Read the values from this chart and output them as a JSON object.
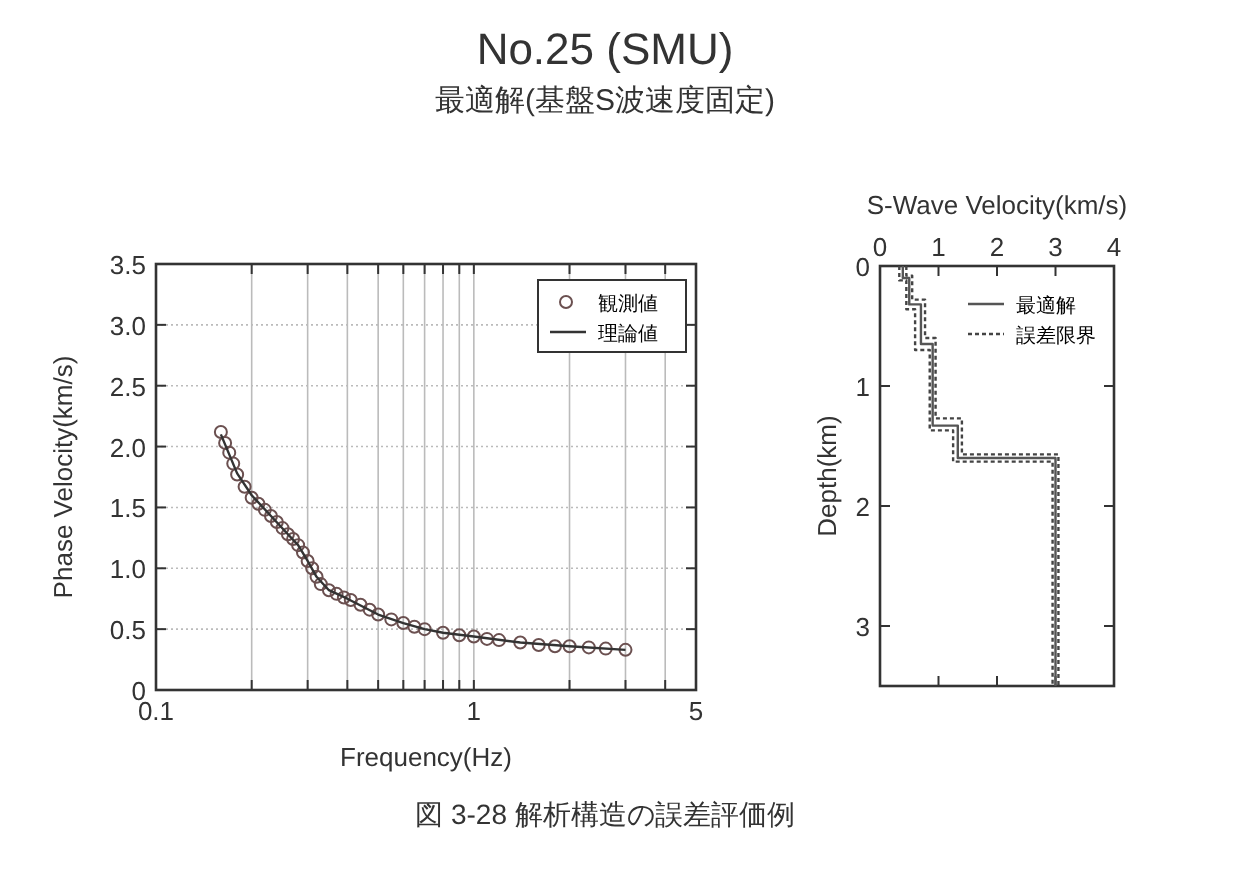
{
  "chart_data": [
    {
      "type": "scatter",
      "title": "No.25 (SMU)",
      "subtitle": "最適解(基盤S波速度固定)",
      "annotations": [
        "図 3-28  解析構造の誤差評価例"
      ],
      "xlabel": "Frequency(Hz)",
      "ylabel": "Phase Velocity(km/s)",
      "log": "x",
      "xlim": [
        0.1,
        5
      ],
      "xticks": [
        0.1,
        {
          "value": 0.2,
          "label": null
        },
        {
          "value": 0.3,
          "label": null
        },
        {
          "value": 0.4,
          "label": null
        },
        {
          "value": 0.5,
          "label": null
        },
        {
          "value": 0.6,
          "label": null
        },
        {
          "value": 0.7,
          "label": null
        },
        {
          "value": 0.8,
          "label": null
        },
        {
          "value": 0.9,
          "label": null
        },
        1,
        {
          "value": 2,
          "label": null
        },
        {
          "value": 3,
          "label": null
        },
        {
          "value": 4,
          "label": null
        },
        5
      ],
      "ylim": [
        0,
        3.5
      ],
      "yticks": [
        0.0,
        {
          "value": 0.5,
          "label": "0.5"
        },
        {
          "value": 1,
          "label": "1.0"
        },
        {
          "value": 1.5,
          "label": "1.5"
        },
        {
          "value": 2,
          "label": "2.0"
        },
        {
          "value": 2.5,
          "label": "2.5"
        },
        {
          "value": 3,
          "label": "3.0"
        },
        {
          "value": 3.5,
          "label": "3.5"
        }
      ],
      "grid": true,
      "legend": "top right",
      "series": [
        {
          "name": "観測値",
          "marker": "circle",
          "color": "#6b5050",
          "x": [
            0.16,
            0.165,
            0.17,
            0.175,
            0.18,
            0.19,
            0.2,
            0.21,
            0.22,
            0.23,
            0.24,
            0.25,
            0.26,
            0.27,
            0.28,
            0.29,
            0.3,
            0.31,
            0.32,
            0.33,
            0.35,
            0.37,
            0.39,
            0.41,
            0.44,
            0.47,
            0.5,
            0.55,
            0.6,
            0.65,
            0.7,
            0.8,
            0.9,
            1.0,
            1.1,
            1.2,
            1.4,
            1.6,
            1.8,
            2.0,
            2.3,
            2.6,
            3.0
          ],
          "values": [
            2.12,
            2.03,
            1.95,
            1.86,
            1.77,
            1.67,
            1.58,
            1.53,
            1.48,
            1.43,
            1.38,
            1.33,
            1.28,
            1.24,
            1.19,
            1.13,
            1.06,
            1.0,
            0.93,
            0.87,
            0.82,
            0.79,
            0.76,
            0.74,
            0.7,
            0.66,
            0.62,
            0.58,
            0.55,
            0.52,
            0.5,
            0.47,
            0.45,
            0.44,
            0.42,
            0.41,
            0.39,
            0.37,
            0.36,
            0.36,
            0.35,
            0.34,
            0.33
          ]
        },
        {
          "name": "理論値",
          "type": "line",
          "marker": "none",
          "line_style": "solid",
          "color": "#333333",
          "x": [
            0.16,
            0.18,
            0.2,
            0.23,
            0.26,
            0.28,
            0.3,
            0.32,
            0.35,
            0.4,
            0.5,
            0.6,
            0.7,
            0.8,
            1.0,
            1.4,
            2.0,
            3.0
          ],
          "values": [
            2.1,
            1.78,
            1.6,
            1.43,
            1.28,
            1.19,
            1.06,
            0.93,
            0.82,
            0.75,
            0.62,
            0.55,
            0.5,
            0.47,
            0.44,
            0.39,
            0.36,
            0.33
          ]
        }
      ]
    },
    {
      "type": "line",
      "xlabel": "S-Wave Velocity(km/s)",
      "ylabel": "Depth(km)",
      "xlim": [
        0,
        4
      ],
      "xticks": [
        0,
        1,
        2,
        3,
        4
      ],
      "ylim": [
        3.5,
        0
      ],
      "yticks": [
        0,
        1,
        2,
        3
      ],
      "grid": false,
      "legend": "top right",
      "series": [
        {
          "name": "最適解",
          "line_style": "solid",
          "color": "#555555",
          "x": [
            0.39,
            0.39,
            0.5,
            0.5,
            0.7,
            0.7,
            0.9,
            0.9,
            1.33,
            1.33,
            3.0,
            3.0
          ],
          "values": [
            0,
            0.1,
            0.1,
            0.32,
            0.32,
            0.65,
            0.65,
            1.33,
            1.33,
            1.6,
            1.6,
            3.5
          ]
        },
        {
          "name": "誤差限界",
          "line_style": "dotted",
          "color": "#444444",
          "x": [
            0.33,
            0.33,
            0.45,
            0.45,
            0.6,
            0.6,
            0.85,
            0.85,
            1.25,
            1.25,
            2.95,
            2.95
          ],
          "values": [
            0,
            0.12,
            0.12,
            0.36,
            0.36,
            0.7,
            0.7,
            1.37,
            1.37,
            1.63,
            1.63,
            3.5
          ]
        },
        {
          "line_style": "dotted",
          "color": "#444444",
          "x": [
            0.45,
            0.45,
            0.55,
            0.55,
            0.77,
            0.77,
            0.95,
            0.95,
            1.4,
            1.4,
            3.05,
            3.05
          ],
          "values": [
            0,
            0.08,
            0.08,
            0.28,
            0.28,
            0.6,
            0.6,
            1.27,
            1.27,
            1.57,
            1.57,
            3.5
          ]
        }
      ]
    }
  ]
}
